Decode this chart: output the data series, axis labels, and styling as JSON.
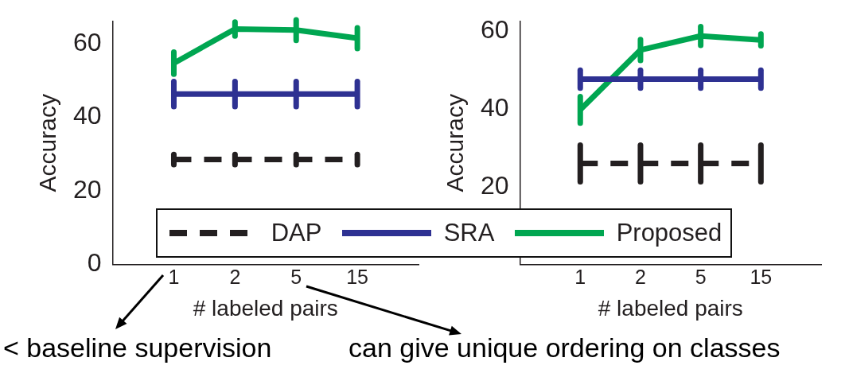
{
  "chart_data": [
    {
      "type": "line",
      "ylabel": "Accuracy",
      "xlabel": "# labeled pairs",
      "categories": [
        "1",
        "2",
        "5",
        "15"
      ],
      "ylim": [
        0,
        66
      ],
      "yticks": [
        0,
        20,
        40,
        60
      ],
      "grid": false,
      "legend": "bottom",
      "marker": "none",
      "series": [
        {
          "name": "DAP",
          "color": "#231f20",
          "line_style": "dashed",
          "values": [
            28.5,
            28.5,
            28.5,
            28.5
          ],
          "errors": [
            1.4,
            1.4,
            1.4,
            1.4
          ]
        },
        {
          "name": "SRA",
          "color": "#2e3192",
          "line_style": "solid",
          "values": [
            46.3,
            46.3,
            46.3,
            46.3
          ],
          "errors": [
            3.4,
            3.4,
            3.4,
            3.4
          ]
        },
        {
          "name": "Proposed",
          "color": "#00a651",
          "line_style": "solid",
          "values": [
            54.7,
            64.0,
            63.7,
            61.5
          ],
          "errors": [
            3.0,
            1.9,
            2.8,
            2.8
          ]
        }
      ],
      "annotations": [
        "< baseline supervision",
        "can give unique ordering on classes"
      ]
    },
    {
      "type": "line",
      "ylabel": "Accuracy",
      "xlabel": "# labeled pairs",
      "categories": [
        "1",
        "2",
        "5",
        "15"
      ],
      "ylim": [
        0,
        62.5
      ],
      "yticks": [
        20,
        40,
        60
      ],
      "grid": false,
      "marker": "none",
      "series": [
        {
          "color": "#231f20",
          "line_style": "dashed",
          "values": [
            26.0,
            26.0,
            26.0,
            26.0
          ],
          "errors": [
            4.7,
            4.7,
            4.7,
            4.7
          ]
        },
        {
          "color": "#2e3192",
          "line_style": "solid",
          "values": [
            47.7,
            47.7,
            47.7,
            47.7
          ],
          "errors": [
            2.3,
            2.3,
            2.3,
            2.3
          ]
        },
        {
          "color": "#00a651",
          "line_style": "solid",
          "values": [
            39.8,
            55.2,
            58.8,
            57.8
          ],
          "errors": [
            3.4,
            2.7,
            2.4,
            1.5
          ]
        }
      ]
    }
  ]
}
